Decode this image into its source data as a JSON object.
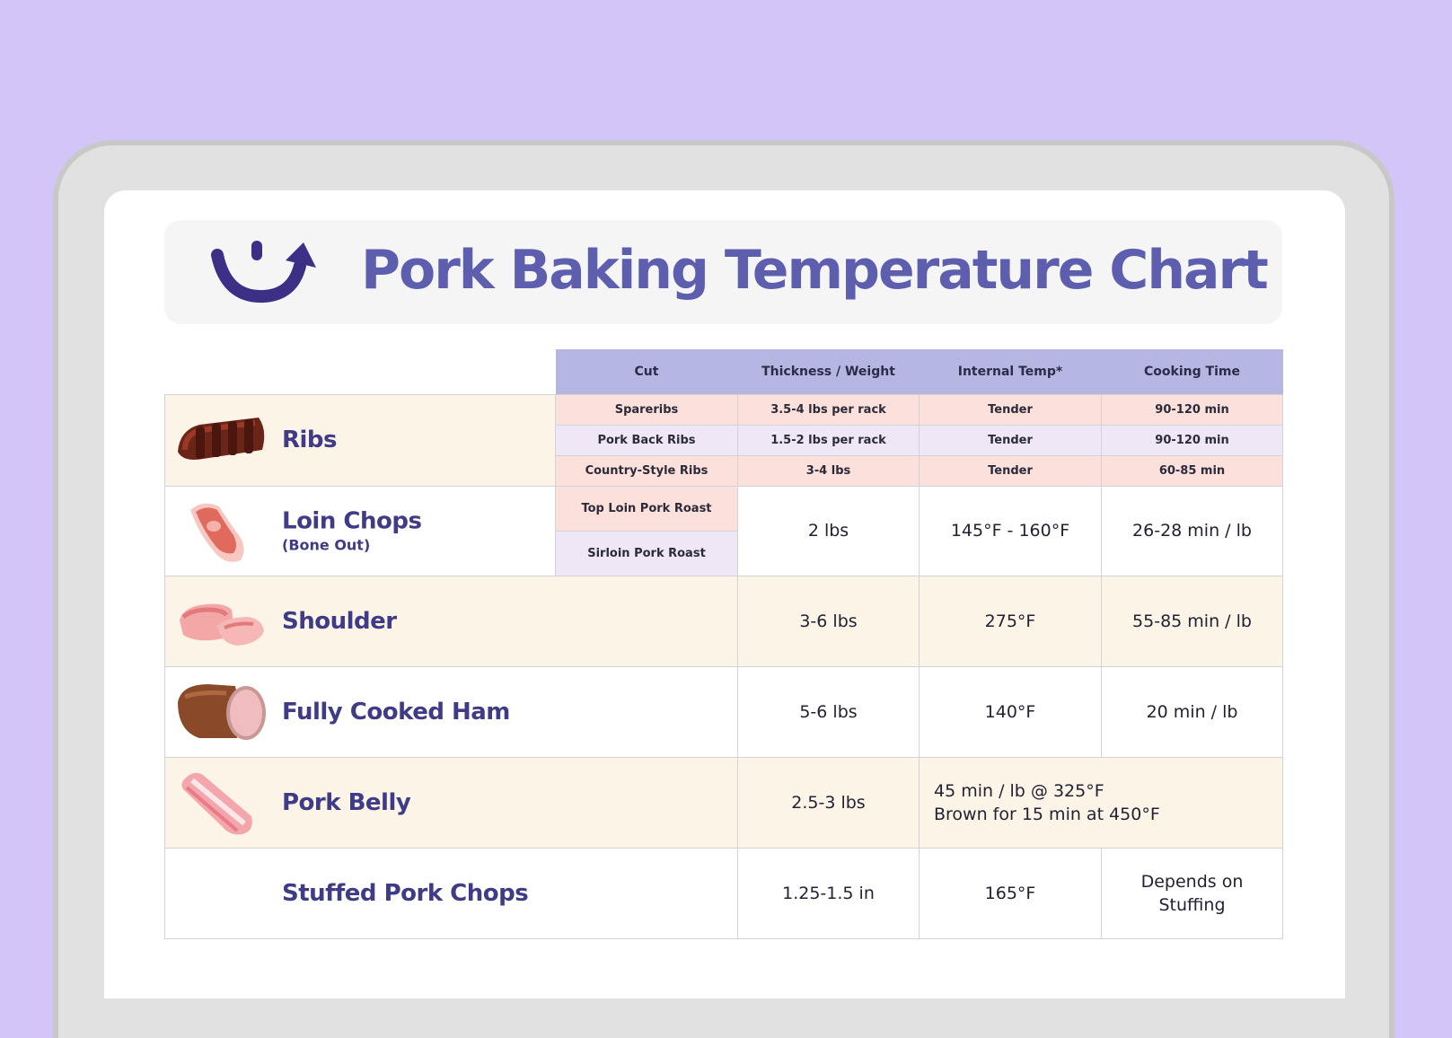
{
  "title": "Pork Baking Temperature Chart",
  "headers": {
    "cut": "Cut",
    "weight": "Thickness / Weight",
    "temp": "Internal Temp*",
    "time": "Cooking Time"
  },
  "ribs": {
    "name": "Ribs",
    "rows": [
      {
        "cut": "Spareribs",
        "weight": "3.5-4 lbs per rack",
        "temp": "Tender",
        "time": "90-120 min"
      },
      {
        "cut": "Pork Back Ribs",
        "weight": "1.5-2 lbs per rack",
        "temp": "Tender",
        "time": "90-120 min"
      },
      {
        "cut": "Country-Style Ribs",
        "weight": "3-4 lbs",
        "temp": "Tender",
        "time": "60-85 min"
      }
    ]
  },
  "loin": {
    "name": "Loin Chops",
    "sub": "(Bone Out)",
    "cut1": "Top Loin Pork Roast",
    "cut2": "Sirloin Pork Roast",
    "weight": "2 lbs",
    "temp": "145°F - 160°F",
    "time": "26-28 min / lb"
  },
  "shoulder": {
    "name": "Shoulder",
    "weight": "3-6 lbs",
    "temp": "275°F",
    "time": "55-85 min / lb"
  },
  "ham": {
    "name": "Fully Cooked Ham",
    "weight": "5-6 lbs",
    "temp": "140°F",
    "time": "20 min / lb"
  },
  "belly": {
    "name": "Pork Belly",
    "weight": "2.5-3 lbs",
    "line1": "45 min / lb @ 325°F",
    "line2": "Brown for 15 min at 450°F"
  },
  "stuffed": {
    "name": "Stuffed Pork Chops",
    "weight": "1.25-1.5 in",
    "temp": "165°F",
    "time_line1": "Depends on",
    "time_line2": "Stuffing"
  },
  "colors": {
    "background": "#d4c5f8",
    "title": "#5d5fae",
    "header": "#b5b7e2",
    "cream": "#fcf4e7",
    "pink": "#fbe0dc",
    "lavender": "#efe7f6"
  },
  "icons": [
    "logo-smile-arrow-icon",
    "ribs-icon",
    "loin-chop-icon",
    "shoulder-icon",
    "ham-icon",
    "pork-belly-icon"
  ]
}
